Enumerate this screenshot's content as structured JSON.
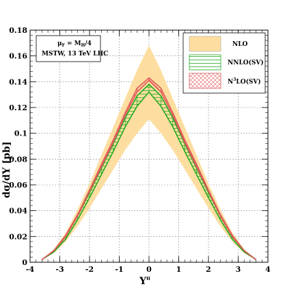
{
  "chart_data": {
    "type": "area",
    "xlabel": "Y",
    "xlabel_sup": "H",
    "ylabel": "dσ/dY [pb]",
    "xlim": [
      -4,
      4
    ],
    "ylim": [
      0,
      0.18
    ],
    "xticks": [
      "-4",
      "-3",
      "-2",
      "-1",
      "0",
      "1",
      "2",
      "3",
      "4"
    ],
    "yticks": [
      "0",
      "0.02",
      "0.04",
      "0.06",
      "0.08",
      "0.1",
      "0.12",
      "0.14",
      "0.16",
      "0.18"
    ],
    "grid": true,
    "legend_position": "top-right",
    "info_box": {
      "line1_mu": "μ",
      "line1_sub": "F",
      "line1_eq": " = M",
      "line1_sub2": "H",
      "line1_end": "/4",
      "line2": "MSTW, 13 TeV LHC"
    },
    "x": [
      -3.6,
      -3.2,
      -2.8,
      -2.4,
      -2.0,
      -1.6,
      -1.2,
      -0.8,
      -0.4,
      0.0,
      0.4,
      0.8,
      1.2,
      1.6,
      2.0,
      2.4,
      2.8,
      3.2,
      3.6
    ],
    "series": [
      {
        "name": "NLO",
        "color": "#fddea0",
        "low": [
          0.002,
          0.007,
          0.016,
          0.028,
          0.042,
          0.057,
          0.072,
          0.087,
          0.1,
          0.111,
          0.1,
          0.087,
          0.072,
          0.057,
          0.042,
          0.028,
          0.016,
          0.007,
          0.002
        ],
        "high": [
          0.002,
          0.01,
          0.023,
          0.041,
          0.061,
          0.083,
          0.105,
          0.127,
          0.149,
          0.168,
          0.149,
          0.127,
          0.105,
          0.083,
          0.061,
          0.041,
          0.023,
          0.01,
          0.002
        ]
      },
      {
        "name": "NNLO(SV)",
        "color": "#22aa22",
        "low": [
          0.002,
          0.008,
          0.018,
          0.033,
          0.05,
          0.068,
          0.086,
          0.105,
          0.121,
          0.132,
          0.121,
          0.105,
          0.086,
          0.068,
          0.05,
          0.033,
          0.018,
          0.008,
          0.002
        ],
        "high": [
          0.002,
          0.009,
          0.02,
          0.036,
          0.054,
          0.073,
          0.092,
          0.112,
          0.129,
          0.138,
          0.129,
          0.112,
          0.092,
          0.073,
          0.054,
          0.036,
          0.02,
          0.009,
          0.002
        ]
      },
      {
        "name": "N3LO(SV)",
        "name_prefix": "N",
        "name_sup": "3",
        "name_suffix": "LO(SV)",
        "color": "#e05a5a",
        "low": [
          0.002,
          0.009,
          0.02,
          0.036,
          0.055,
          0.074,
          0.093,
          0.114,
          0.132,
          0.141,
          0.132,
          0.114,
          0.093,
          0.074,
          0.055,
          0.036,
          0.02,
          0.009,
          0.002
        ],
        "high": [
          0.002,
          0.009,
          0.021,
          0.037,
          0.056,
          0.076,
          0.095,
          0.116,
          0.135,
          0.143,
          0.135,
          0.116,
          0.095,
          0.076,
          0.056,
          0.037,
          0.021,
          0.009,
          0.002
        ]
      }
    ]
  }
}
